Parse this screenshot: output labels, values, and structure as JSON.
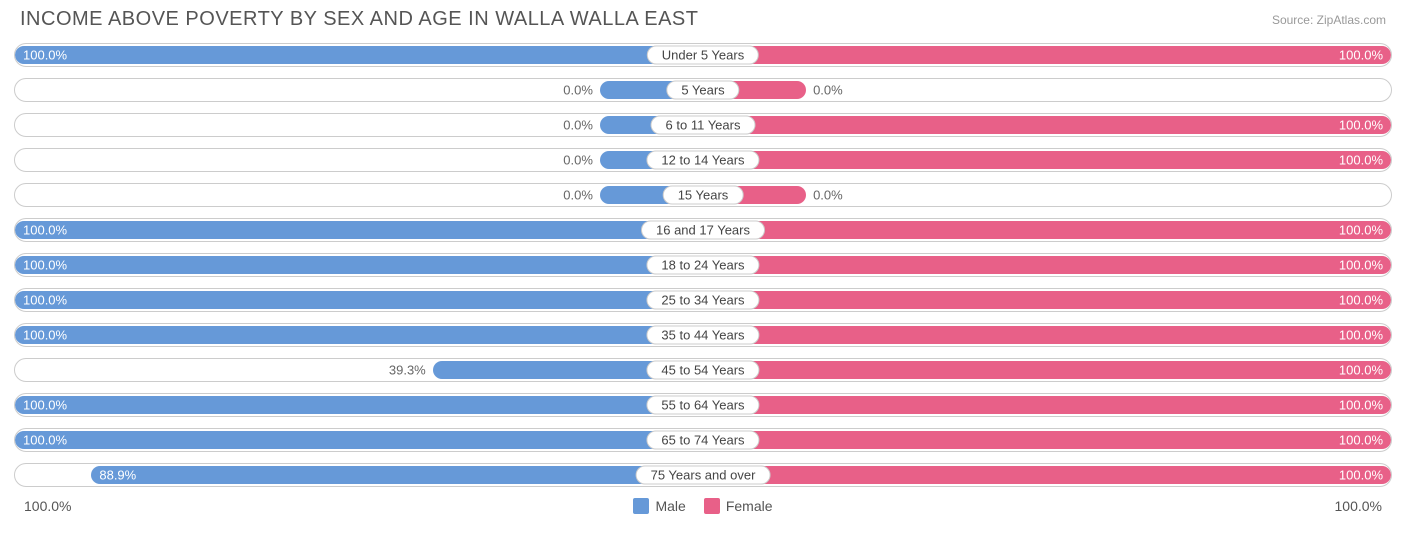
{
  "title": "INCOME ABOVE POVERTY BY SEX AND AGE IN WALLA WALLA EAST",
  "source": "Source: ZipAtlas.com",
  "colors": {
    "male": "#6699d8",
    "female": "#e86088",
    "border": "#cccccc",
    "text": "#555555"
  },
  "axis": {
    "left": "100.0%",
    "right": "100.0%"
  },
  "legend": {
    "male": "Male",
    "female": "Female"
  },
  "min_bar_pct": 15,
  "rows": [
    {
      "age": "Under 5 Years",
      "male": 100.0,
      "female": 100.0
    },
    {
      "age": "5 Years",
      "male": 0.0,
      "female": 0.0
    },
    {
      "age": "6 to 11 Years",
      "male": 0.0,
      "female": 100.0
    },
    {
      "age": "12 to 14 Years",
      "male": 0.0,
      "female": 100.0
    },
    {
      "age": "15 Years",
      "male": 0.0,
      "female": 0.0
    },
    {
      "age": "16 and 17 Years",
      "male": 100.0,
      "female": 100.0
    },
    {
      "age": "18 to 24 Years",
      "male": 100.0,
      "female": 100.0
    },
    {
      "age": "25 to 34 Years",
      "male": 100.0,
      "female": 100.0
    },
    {
      "age": "35 to 44 Years",
      "male": 100.0,
      "female": 100.0
    },
    {
      "age": "45 to 54 Years",
      "male": 39.3,
      "female": 100.0
    },
    {
      "age": "55 to 64 Years",
      "male": 100.0,
      "female": 100.0
    },
    {
      "age": "65 to 74 Years",
      "male": 100.0,
      "female": 100.0
    },
    {
      "age": "75 Years and over",
      "male": 88.9,
      "female": 100.0
    }
  ]
}
